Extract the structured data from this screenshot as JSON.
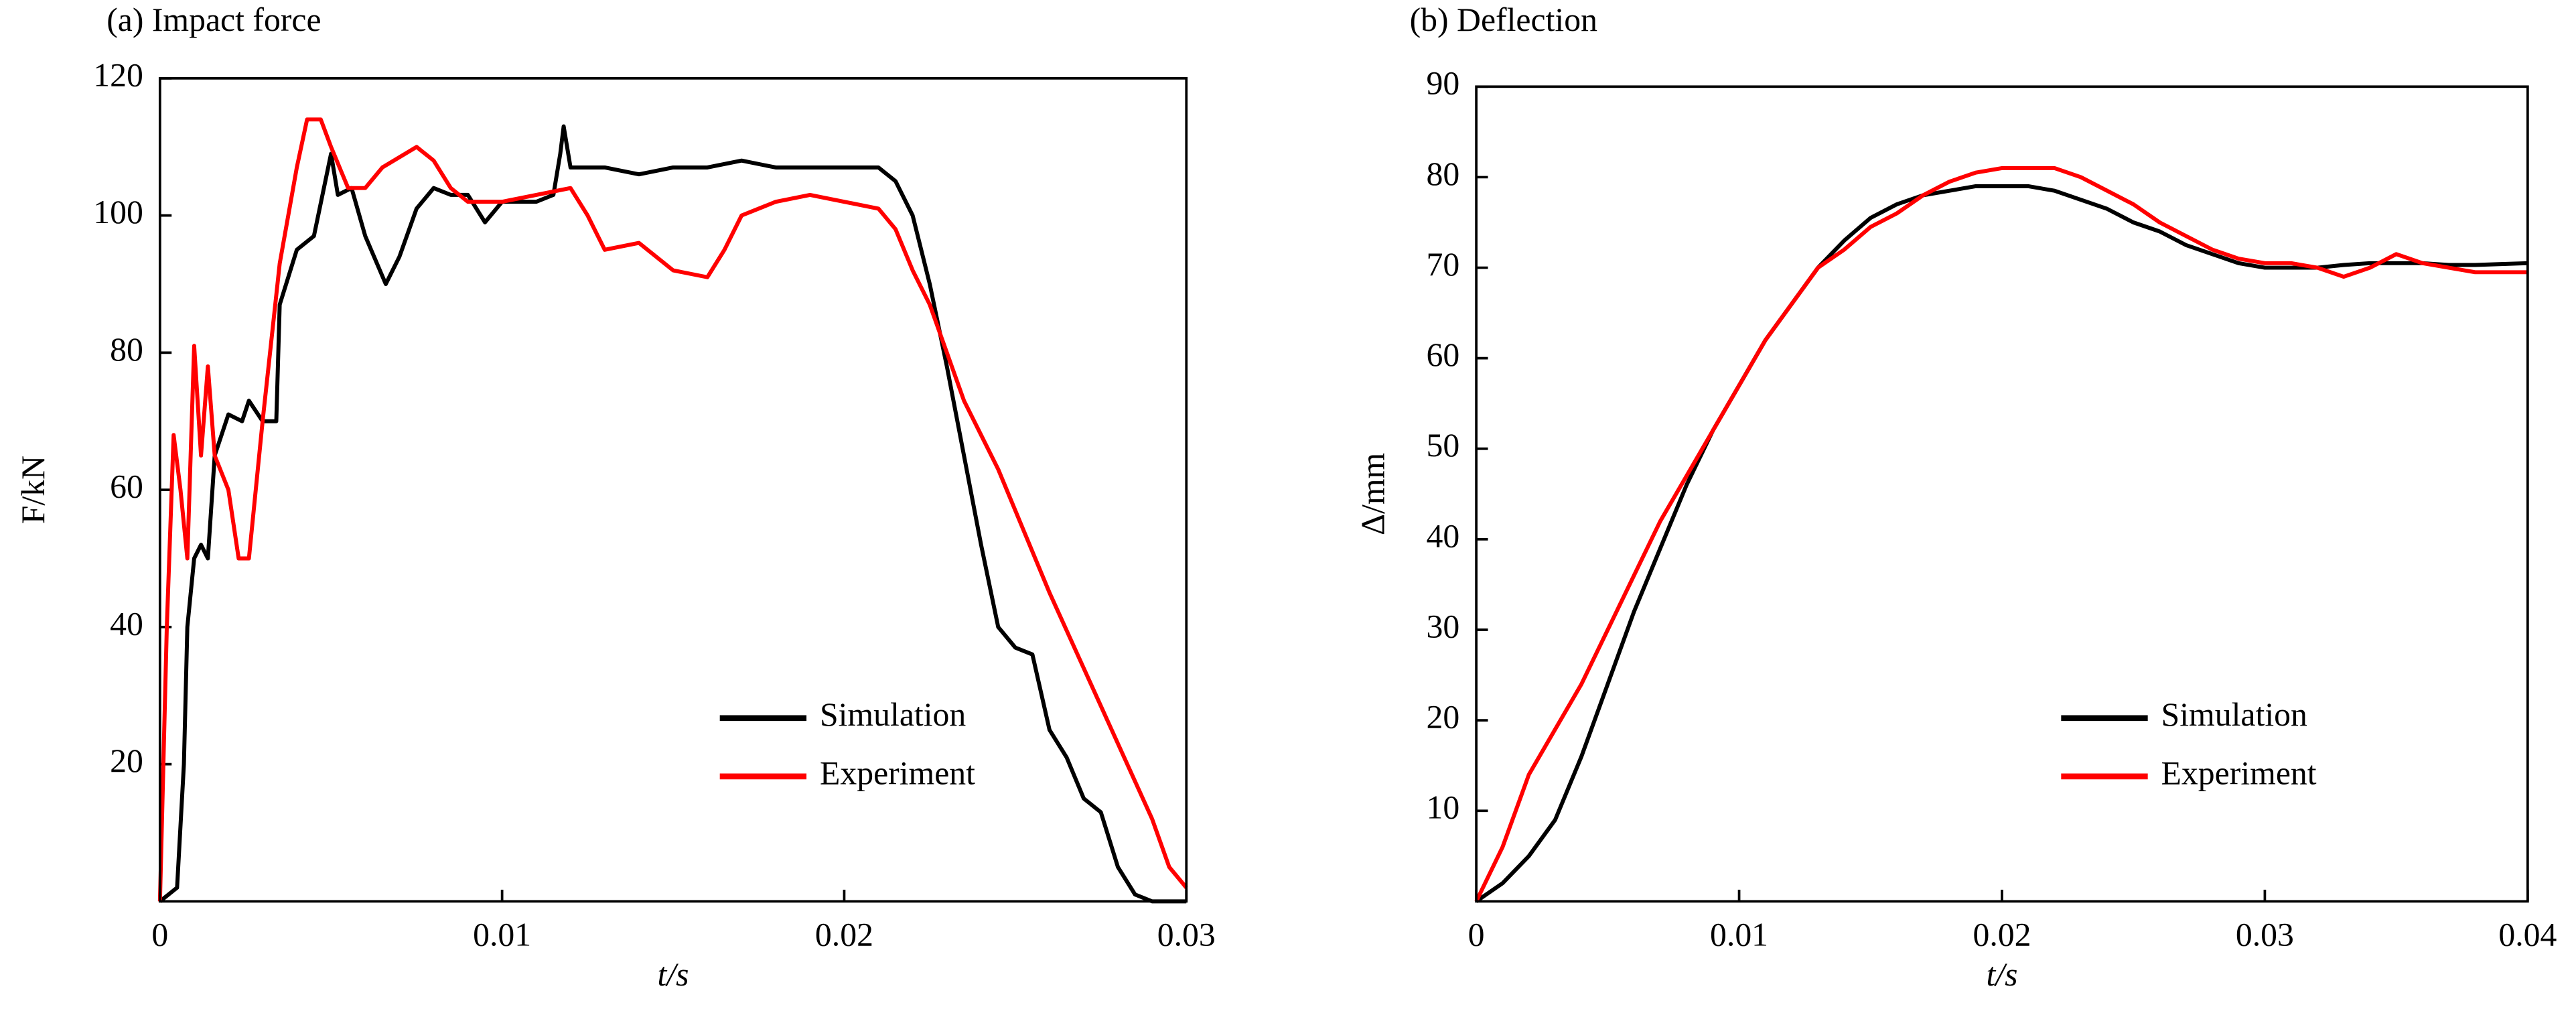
{
  "chart_data": [
    {
      "type": "line",
      "title": "(a) Impact force",
      "xlabel": "t/s",
      "ylabel": "F/kN",
      "xlim": [
        0,
        0.03
      ],
      "xticks": [
        0,
        0.01,
        0.02,
        0.03
      ],
      "ylim": [
        0,
        120
      ],
      "yticks": [
        20,
        40,
        60,
        80,
        100,
        120
      ],
      "legend": "lower right",
      "grid": false,
      "series": [
        {
          "name": "Simulation",
          "color": "#000000",
          "x": [
            0,
            0.0005,
            0.0007,
            0.0008,
            0.001,
            0.0012,
            0.0014,
            0.0016,
            0.002,
            0.0024,
            0.0026,
            0.003,
            0.0034,
            0.0035,
            0.004,
            0.0045,
            0.005,
            0.0052,
            0.0056,
            0.006,
            0.0066,
            0.007,
            0.0075,
            0.008,
            0.0085,
            0.009,
            0.0095,
            0.01,
            0.011,
            0.0115,
            0.0117,
            0.0118,
            0.012,
            0.013,
            0.014,
            0.015,
            0.016,
            0.017,
            0.018,
            0.019,
            0.02,
            0.021,
            0.0215,
            0.022,
            0.0225,
            0.023,
            0.0235,
            0.024,
            0.0245,
            0.025,
            0.0255,
            0.026,
            0.0265,
            0.027,
            0.0275,
            0.028,
            0.0285,
            0.029,
            0.03
          ],
          "values": [
            0,
            2,
            20,
            40,
            50,
            52,
            50,
            65,
            71,
            70,
            73,
            70,
            70,
            87,
            95,
            97,
            109,
            103,
            104,
            97,
            90,
            94,
            101,
            104,
            103,
            103,
            99,
            102,
            102,
            103,
            109,
            113,
            107,
            107,
            106,
            107,
            107,
            108,
            107,
            107,
            107,
            107,
            105,
            100,
            90,
            78,
            65,
            52,
            40,
            37,
            36,
            25,
            21,
            15,
            13,
            5,
            1,
            0,
            0
          ]
        },
        {
          "name": "Experiment",
          "color": "#ff0000",
          "x": [
            0,
            0.0002,
            0.0004,
            0.0006,
            0.0008,
            0.001,
            0.0012,
            0.0014,
            0.0016,
            0.002,
            0.0023,
            0.0026,
            0.003,
            0.0035,
            0.004,
            0.0043,
            0.0047,
            0.005,
            0.0055,
            0.006,
            0.0065,
            0.0075,
            0.008,
            0.0085,
            0.009,
            0.01,
            0.011,
            0.012,
            0.0125,
            0.013,
            0.014,
            0.015,
            0.016,
            0.0165,
            0.017,
            0.018,
            0.019,
            0.02,
            0.021,
            0.0215,
            0.022,
            0.0225,
            0.023,
            0.0235,
            0.024,
            0.0245,
            0.025,
            0.026,
            0.027,
            0.028,
            0.029,
            0.0295,
            0.03
          ],
          "values": [
            0,
            40,
            68,
            60,
            50,
            81,
            65,
            78,
            65,
            60,
            50,
            50,
            70,
            93,
            107,
            114,
            114,
            110,
            104,
            104,
            107,
            110,
            108,
            104,
            102,
            102,
            103,
            104,
            100,
            95,
            96,
            92,
            91,
            95,
            100,
            102,
            103,
            102,
            101,
            98,
            92,
            87,
            80,
            73,
            68,
            63,
            57,
            45,
            34,
            23,
            12,
            5,
            2
          ]
        }
      ]
    },
    {
      "type": "line",
      "title": "(b) Deflection",
      "xlabel": "t/s",
      "ylabel": "Δ/mm",
      "xlim": [
        0,
        0.04
      ],
      "xticks": [
        0,
        0.01,
        0.02,
        0.03,
        0.04
      ],
      "ylim": [
        0,
        90
      ],
      "yticks": [
        10,
        20,
        30,
        40,
        50,
        60,
        70,
        80,
        90
      ],
      "legend": "lower right",
      "grid": false,
      "x": [
        0,
        0.001,
        0.002,
        0.003,
        0.004,
        0.005,
        0.006,
        0.007,
        0.008,
        0.009,
        0.01,
        0.011,
        0.012,
        0.013,
        0.014,
        0.015,
        0.016,
        0.017,
        0.018,
        0.019,
        0.02,
        0.021,
        0.022,
        0.023,
        0.024,
        0.025,
        0.026,
        0.027,
        0.028,
        0.029,
        0.03,
        0.031,
        0.032,
        0.033,
        0.034,
        0.035,
        0.036,
        0.037,
        0.038,
        0.039,
        0.04
      ],
      "series": [
        {
          "name": "Simulation",
          "color": "#000000",
          "values": [
            0,
            2,
            5,
            9,
            16,
            24,
            32,
            39,
            46,
            52,
            57,
            62,
            66,
            70,
            73,
            75.5,
            77,
            78,
            78.5,
            79,
            79,
            79,
            78.5,
            77.5,
            76.5,
            75,
            74,
            72.5,
            71.5,
            70.5,
            70,
            70,
            70,
            70.3,
            70.5,
            70.5,
            70.5,
            70.3,
            70.3,
            70.4,
            70.5
          ]
        },
        {
          "name": "Experiment",
          "color": "#ff0000",
          "values": [
            0,
            6,
            14,
            19,
            24,
            30,
            36,
            42,
            47,
            52,
            57,
            62,
            66,
            70,
            72,
            74.5,
            76,
            78,
            79.5,
            80.5,
            81,
            81,
            81,
            80,
            78.5,
            77,
            75,
            73.5,
            72,
            71,
            70.5,
            70.5,
            70,
            69,
            70,
            71.5,
            70.5,
            70,
            69.5,
            69.5,
            69.5
          ]
        }
      ]
    }
  ]
}
